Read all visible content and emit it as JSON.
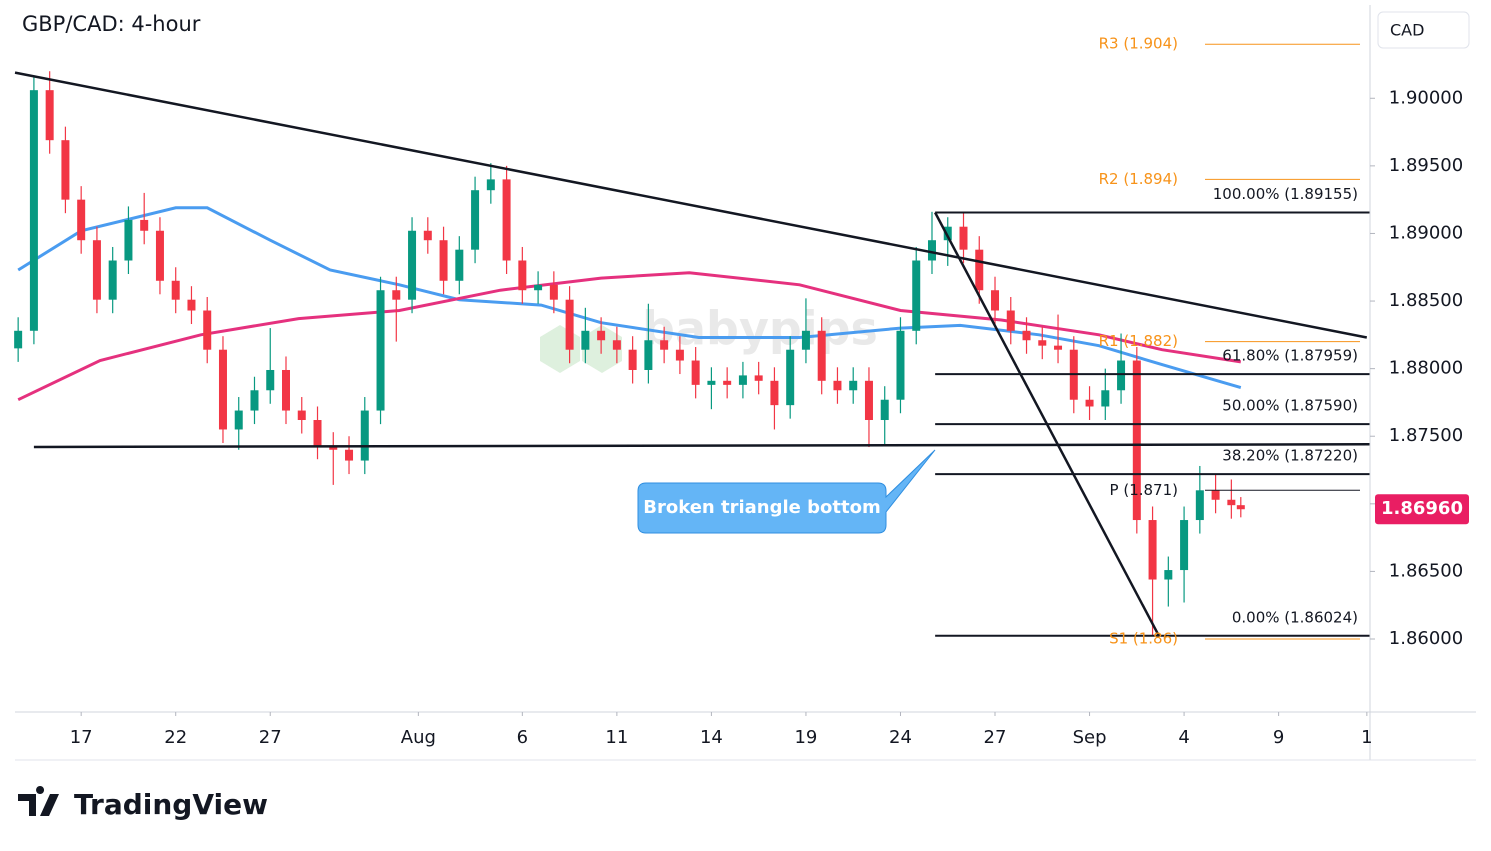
{
  "chart_data": {
    "type": "candlestick",
    "title": "GBP/CAD: 4-hour",
    "y_axis_label": "CAD",
    "up_color": "#089981",
    "down_color": "#f23645",
    "x": [
      -2,
      -1.5,
      -1,
      -0.5,
      0,
      0.5,
      1,
      1.5,
      2,
      2.5,
      3,
      3.5,
      4,
      4.5,
      5,
      5.5,
      6,
      6.5,
      7,
      7.5,
      8,
      8.5,
      9,
      9.5,
      10,
      10.5,
      11,
      11.5,
      12,
      12.5,
      13,
      13.5,
      14,
      14.5,
      15,
      15.5,
      16,
      16.5,
      17,
      17.5,
      18,
      18.5,
      19,
      19.5,
      20,
      20.5,
      21,
      21.5,
      22,
      22.5,
      23,
      23.5,
      24,
      24.5,
      25,
      25.5,
      26,
      26.5,
      27,
      27.5,
      28,
      28.5,
      29,
      29.5,
      30,
      30.5,
      31,
      31.5,
      32,
      32.5,
      33,
      33.5,
      34,
      34.5,
      35,
      35.5,
      36,
      36.5,
      36.8
    ],
    "open": [
      1.8815,
      1.8828,
      1.9006,
      1.8969,
      1.8925,
      1.8895,
      1.8851,
      1.888,
      1.891,
      1.8902,
      1.8865,
      1.8851,
      1.8843,
      1.8814,
      1.8755,
      1.8769,
      1.8784,
      1.8799,
      1.8769,
      1.8762,
      1.8743,
      1.874,
      1.8732,
      1.8769,
      1.8858,
      1.8851,
      1.8902,
      1.8895,
      1.8865,
      1.8888,
      1.8932,
      1.894,
      1.888,
      1.8858,
      1.8862,
      1.8851,
      1.8814,
      1.8828,
      1.8821,
      1.8814,
      1.8799,
      1.8821,
      1.8814,
      1.8806,
      1.8788,
      1.8791,
      1.8788,
      1.8795,
      1.8791,
      1.8773,
      1.8814,
      1.8828,
      1.8791,
      1.8784,
      1.8791,
      1.8762,
      1.8777,
      1.8828,
      1.888,
      1.8895,
      1.8905,
      1.8888,
      1.8858,
      1.8843,
      1.8828,
      1.8821,
      1.8817,
      1.8814,
      1.8777,
      1.8772,
      1.8784,
      1.8806,
      1.8688,
      1.8644,
      1.8651,
      1.8688,
      1.871,
      1.8703,
      1.8699
    ],
    "high": [
      1.8838,
      1.9016,
      1.902,
      1.8979,
      1.8935,
      1.8905,
      1.889,
      1.892,
      1.893,
      1.8912,
      1.8875,
      1.8861,
      1.8853,
      1.8824,
      1.8779,
      1.8794,
      1.883,
      1.8809,
      1.8779,
      1.8772,
      1.8753,
      1.875,
      1.8779,
      1.8868,
      1.8868,
      1.8912,
      1.8912,
      1.8905,
      1.8898,
      1.8942,
      1.8952,
      1.895,
      1.889,
      1.8872,
      1.8872,
      1.8861,
      1.8845,
      1.8838,
      1.8831,
      1.8824,
      1.8848,
      1.8831,
      1.8824,
      1.8816,
      1.8801,
      1.8801,
      1.8805,
      1.8805,
      1.8801,
      1.8824,
      1.8852,
      1.8838,
      1.8801,
      1.8801,
      1.8801,
      1.8787,
      1.8838,
      1.889,
      1.8916,
      1.8912,
      1.8915,
      1.8898,
      1.8868,
      1.8853,
      1.8838,
      1.8831,
      1.884,
      1.8824,
      1.8787,
      1.88,
      1.8826,
      1.8816,
      1.8698,
      1.8661,
      1.8698,
      1.8728,
      1.8722,
      1.8718,
      1.8705
    ],
    "low": [
      1.8805,
      1.8818,
      1.8959,
      1.8915,
      1.8885,
      1.8841,
      1.8841,
      1.887,
      1.8892,
      1.8855,
      1.8841,
      1.8833,
      1.8804,
      1.8745,
      1.874,
      1.8759,
      1.8774,
      1.8759,
      1.8752,
      1.8733,
      1.8714,
      1.8722,
      1.8722,
      1.8759,
      1.882,
      1.8841,
      1.8885,
      1.8855,
      1.8855,
      1.8878,
      1.8922,
      1.887,
      1.8848,
      1.8848,
      1.8841,
      1.8804,
      1.8804,
      1.8811,
      1.8804,
      1.8789,
      1.8789,
      1.8804,
      1.8796,
      1.8778,
      1.877,
      1.8778,
      1.8778,
      1.8781,
      1.8755,
      1.8763,
      1.8804,
      1.8781,
      1.8774,
      1.8774,
      1.8742,
      1.8744,
      1.8767,
      1.8818,
      1.887,
      1.8876,
      1.8878,
      1.8848,
      1.8833,
      1.8818,
      1.8811,
      1.8807,
      1.8804,
      1.8767,
      1.8762,
      1.8762,
      1.8774,
      1.8678,
      1.8602,
      1.8624,
      1.8627,
      1.8678,
      1.8693,
      1.8689,
      1.869
    ],
    "close": [
      1.8828,
      1.9006,
      1.8969,
      1.8925,
      1.8895,
      1.8851,
      1.888,
      1.891,
      1.8902,
      1.8865,
      1.8851,
      1.8843,
      1.8814,
      1.8755,
      1.8769,
      1.8784,
      1.8799,
      1.8769,
      1.8762,
      1.8743,
      1.874,
      1.8732,
      1.8769,
      1.8858,
      1.8851,
      1.8902,
      1.8895,
      1.8865,
      1.8888,
      1.8932,
      1.894,
      1.888,
      1.8858,
      1.8862,
      1.8851,
      1.8814,
      1.8828,
      1.8821,
      1.8814,
      1.8799,
      1.8821,
      1.8814,
      1.8806,
      1.8788,
      1.8791,
      1.8788,
      1.8795,
      1.8791,
      1.8773,
      1.8814,
      1.8828,
      1.8791,
      1.8784,
      1.8791,
      1.8762,
      1.8777,
      1.8828,
      1.888,
      1.8895,
      1.8905,
      1.8888,
      1.8858,
      1.8843,
      1.8828,
      1.8821,
      1.8817,
      1.8814,
      1.8777,
      1.8772,
      1.8784,
      1.8806,
      1.8688,
      1.8644,
      1.8651,
      1.8688,
      1.871,
      1.8703,
      1.8699,
      1.8696
    ],
    "lines": [
      {
        "color": "#4a9cf0",
        "x": [
          -2.0,
          0,
          3.0,
          4.0,
          6.0,
          7.9,
          10.1,
          12.0,
          14.6,
          16.5,
          19.6,
          22.8,
          26.0,
          27.9,
          30.4,
          32.3,
          34.3,
          36.8
        ],
        "values": [
          1.8873,
          1.8902,
          1.8919,
          1.8919,
          1.8895,
          1.8873,
          1.8862,
          1.8851,
          1.8847,
          1.8834,
          1.8823,
          1.8823,
          1.883,
          1.8832,
          1.8825,
          1.8817,
          1.8803,
          1.8786
        ]
      },
      {
        "color": "#e5317e",
        "x": [
          -2.0,
          0.6,
          3.8,
          6.9,
          10.1,
          13.3,
          16.5,
          19.3,
          22.8,
          26.0,
          29.2,
          32.3,
          34.3,
          36.8
        ],
        "values": [
          1.8777,
          1.8806,
          1.8825,
          1.8837,
          1.8843,
          1.8858,
          1.8867,
          1.8871,
          1.8862,
          1.8843,
          1.8836,
          1.8825,
          1.8814,
          1.8805
        ]
      }
    ],
    "trendlines": [
      {
        "x": [
          -2.1,
          40.8
        ],
        "values": [
          1.9019,
          1.8823
        ]
      },
      {
        "x": [
          -1.5,
          40.9
        ],
        "values": [
          1.8742,
          1.8744
        ]
      },
      {
        "x": [
          27.1,
          34.2
        ],
        "values": [
          1.89155,
          1.86024
        ]
      }
    ],
    "fib_start": 27.1,
    "fib_levels": [
      {
        "label": "100.00% (1.89155)",
        "value": 1.89155
      },
      {
        "label": "61.80% (1.87959)",
        "value": 1.87959
      },
      {
        "label": "50.00% (1.87590)",
        "value": 1.8759
      },
      {
        "label": "38.20% (1.87220)",
        "value": 1.8722
      },
      {
        "label": "0.00% (1.86024)",
        "value": 1.86024
      }
    ],
    "pivots": [
      {
        "label": "R3 (1.904)",
        "value": 1.904,
        "color": "#f7931a"
      },
      {
        "label": "R2 (1.894)",
        "value": 1.894,
        "color": "#f7931a"
      },
      {
        "label": "R1 (1.882)",
        "value": 1.882,
        "color": "#f7931a"
      },
      {
        "label": "P (1.871)",
        "value": 1.871,
        "color": "#131722"
      },
      {
        "label": "S1 (1.86)",
        "value": 1.86,
        "color": "#f7931a"
      }
    ],
    "last_price": {
      "value": 1.8696,
      "label": "1.86960",
      "color": "#e91e63"
    },
    "annotation": "Broken triangle bottom",
    "watermark": "babypips",
    "ylim": [
      1.8546,
      1.9069
    ],
    "yticks": [
      {
        "value": 1.86,
        "label": "1.86000"
      },
      {
        "value": 1.865,
        "label": "1.86500"
      },
      {
        "value": 1.87,
        "label": "1.87000"
      },
      {
        "value": 1.875,
        "label": "1.87500"
      },
      {
        "value": 1.88,
        "label": "1.88000"
      },
      {
        "value": 1.885,
        "label": "1.88500"
      },
      {
        "value": 1.89,
        "label": "1.89000"
      },
      {
        "value": 1.895,
        "label": "1.89500"
      },
      {
        "value": 1.9,
        "label": "1.90000"
      }
    ],
    "xlim": [
      -2.1,
      40.9
    ],
    "xticks": [
      {
        "value": 0,
        "label": "17"
      },
      {
        "value": 3,
        "label": "22"
      },
      {
        "value": 6,
        "label": "27"
      },
      {
        "value": 10.7,
        "label": "Aug"
      },
      {
        "value": 14,
        "label": "6"
      },
      {
        "value": 17,
        "label": "11"
      },
      {
        "value": 20,
        "label": "14"
      },
      {
        "value": 23,
        "label": "19"
      },
      {
        "value": 26,
        "label": "24"
      },
      {
        "value": 29,
        "label": "27"
      },
      {
        "value": 32,
        "label": "Sep"
      },
      {
        "value": 35,
        "label": "4"
      },
      {
        "value": 38,
        "label": "9"
      },
      {
        "value": 40.8,
        "label": "1"
      }
    ]
  },
  "branding": "TradingView"
}
